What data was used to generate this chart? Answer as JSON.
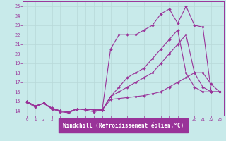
{
  "xlabel": "Windchill (Refroidissement éolien,°C)",
  "bg_color": "#c8eaea",
  "line_color": "#993399",
  "spine_color": "#993399",
  "xlabel_bg": "#993399",
  "xlabel_fg": "#ffffff",
  "xlim_min": -0.5,
  "xlim_max": 23.5,
  "ylim_min": 13.5,
  "ylim_max": 25.5,
  "yticks": [
    14,
    15,
    16,
    17,
    18,
    19,
    20,
    21,
    22,
    23,
    24,
    25
  ],
  "xticks": [
    0,
    1,
    2,
    3,
    4,
    5,
    6,
    7,
    8,
    9,
    10,
    11,
    12,
    13,
    14,
    15,
    16,
    17,
    18,
    19,
    20,
    21,
    22,
    23
  ],
  "line1_x": [
    0,
    1,
    2,
    3,
    4,
    5,
    6,
    7,
    8,
    9,
    10,
    11,
    12,
    13,
    14,
    15,
    16,
    17,
    18,
    19,
    20,
    21,
    22,
    23
  ],
  "line1_y": [
    14.9,
    14.4,
    14.8,
    14.2,
    13.9,
    13.8,
    14.2,
    14.1,
    13.9,
    14.1,
    15.2,
    15.3,
    15.4,
    15.5,
    15.6,
    15.8,
    16.0,
    16.5,
    17.0,
    17.5,
    18.0,
    18.0,
    16.8,
    16.0
  ],
  "line2_x": [
    0,
    1,
    2,
    3,
    4,
    5,
    6,
    7,
    8,
    9,
    10,
    11,
    12,
    13,
    14,
    15,
    16,
    17,
    18,
    19,
    20,
    21,
    22,
    23
  ],
  "line2_y": [
    15.0,
    14.5,
    14.8,
    14.3,
    14.0,
    13.9,
    14.2,
    14.2,
    14.1,
    14.1,
    15.5,
    16.0,
    16.5,
    17.0,
    17.5,
    18.0,
    19.0,
    20.0,
    21.0,
    22.0,
    18.0,
    16.5,
    16.0,
    16.0
  ],
  "line3_x": [
    0,
    1,
    2,
    3,
    4,
    5,
    6,
    7,
    8,
    9,
    10,
    11,
    12,
    13,
    14,
    15,
    16,
    17,
    18,
    19,
    20,
    21,
    22,
    23
  ],
  "line3_y": [
    15.0,
    14.5,
    14.8,
    14.2,
    14.0,
    13.9,
    14.2,
    14.2,
    14.1,
    14.1,
    20.5,
    22.0,
    22.0,
    22.0,
    22.5,
    23.0,
    24.2,
    24.7,
    23.2,
    25.0,
    23.0,
    22.8,
    16.0,
    16.0
  ],
  "line4_x": [
    0,
    1,
    2,
    3,
    4,
    5,
    6,
    7,
    8,
    9,
    10,
    11,
    12,
    13,
    14,
    15,
    16,
    17,
    18,
    19,
    20,
    21,
    22,
    23
  ],
  "line4_y": [
    15.0,
    14.5,
    14.8,
    14.3,
    14.0,
    13.9,
    14.2,
    14.2,
    14.1,
    14.1,
    15.5,
    16.5,
    17.5,
    18.0,
    18.5,
    19.5,
    20.5,
    21.5,
    22.5,
    18.0,
    16.5,
    16.0,
    16.0,
    16.0
  ]
}
